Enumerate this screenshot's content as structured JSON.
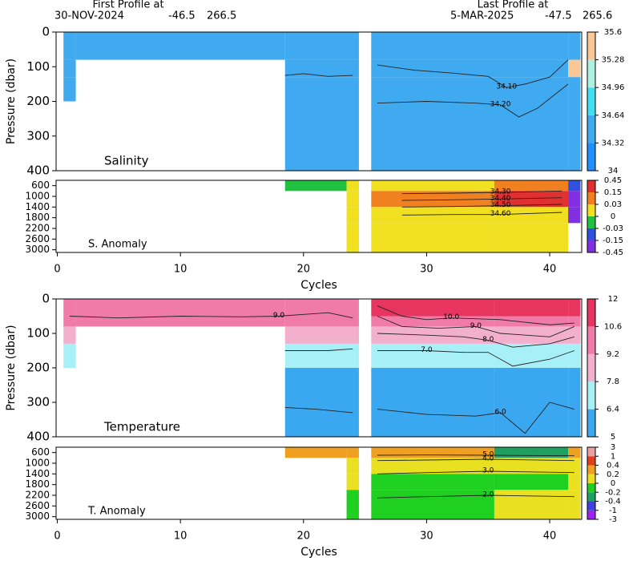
{
  "header": {
    "first_label": "First Profile at",
    "first_date": "30-NOV-2024",
    "first_lat": -46.5,
    "first_lon": 266.5,
    "last_label": "Last Profile at",
    "last_date": "5-MAR-2025",
    "last_lat": -47.5,
    "last_lon": 265.6
  },
  "chart_data": [
    {
      "type": "heatmap",
      "title": "Salinity",
      "y_label": "Pressure (dbar)",
      "xlim": [
        -0.1,
        42.6
      ],
      "ylim": [
        0,
        400
      ],
      "yreverse": true,
      "yticks": [
        0,
        100,
        200,
        300,
        400
      ],
      "x": [
        0.5,
        1.5,
        18.5,
        24.5,
        25.5,
        41.5,
        42.5
      ],
      "y": [
        0,
        80,
        130,
        200,
        400
      ],
      "z": [
        [
          34.45,
          34.45,
          34.45,
          null,
          34.45,
          34.5
        ],
        [
          34.45,
          null,
          34.45,
          null,
          34.45,
          35.4
        ],
        [
          34.45,
          null,
          34.5,
          null,
          34.5,
          34.5
        ],
        [
          null,
          null,
          34.55,
          null,
          34.55,
          34.55
        ]
      ],
      "colorbar": {
        "levels": [
          34,
          34.32,
          34.64,
          34.96,
          35.28,
          35.6
        ],
        "colors": [
          "#1e90ff",
          "#40aaf0",
          "#40e0f0",
          "#b0f0e0",
          "#f8c898"
        ]
      },
      "contours": [
        {
          "label": "34.10",
          "x": [
            26,
            29,
            32,
            35,
            36.5,
            38,
            40,
            41.5
          ],
          "y": [
            95,
            110,
            118,
            128,
            160,
            150,
            130,
            80
          ]
        },
        {
          "x": [
            18.5,
            20,
            22,
            24
          ],
          "y": [
            125,
            120,
            128,
            125
          ]
        },
        {
          "label": "34.20",
          "x": [
            26,
            30,
            34,
            36,
            37.5,
            39,
            41.5
          ],
          "y": [
            205,
            200,
            205,
            210,
            245,
            220,
            150
          ]
        }
      ]
    },
    {
      "type": "heatmap",
      "title": "S. Anomaly",
      "x_label": "Cycles",
      "xlim": [
        -0.1,
        42.6
      ],
      "xticks": [
        0,
        10,
        20,
        30,
        40
      ],
      "ylim": [
        400,
        3100
      ],
      "yreverse": true,
      "yticks": [
        600,
        1000,
        1400,
        1800,
        2200,
        2600,
        3000
      ],
      "x": [
        18.5,
        23.5,
        24.5,
        25.5,
        35.5,
        41.5,
        42.5
      ],
      "y": [
        400,
        800,
        1400,
        2000,
        3100
      ],
      "z": [
        [
          -0.01,
          0.01,
          null,
          0.02,
          0.1,
          -0.1
        ],
        [
          null,
          0.01,
          null,
          0.05,
          0.2,
          -0.3
        ],
        [
          null,
          0.01,
          null,
          0.01,
          0.02,
          -0.3
        ],
        [
          null,
          0.01,
          null,
          0.01,
          0.01,
          null
        ]
      ],
      "colorbar": {
        "levels": [
          -0.45,
          -0.15,
          -0.03,
          0,
          0.03,
          0.15,
          0.45
        ],
        "colors": [
          "#8030e0",
          "#3050e0",
          "#20c040",
          "#f0e020",
          "#f08020",
          "#e03030"
        ]
      },
      "contours": [
        {
          "label": "34.30",
          "x": [
            28,
            32,
            36,
            41
          ],
          "y": [
            900,
            880,
            850,
            800
          ]
        },
        {
          "label": "34.40",
          "x": [
            28,
            32,
            36,
            41
          ],
          "y": [
            1150,
            1130,
            1100,
            1050
          ]
        },
        {
          "label": "34.50",
          "x": [
            28,
            32,
            36,
            41
          ],
          "y": [
            1400,
            1380,
            1350,
            1300
          ]
        },
        {
          "label": "34.60",
          "x": [
            28,
            32,
            36,
            41
          ],
          "y": [
            1700,
            1680,
            1680,
            1600
          ]
        }
      ]
    },
    {
      "type": "heatmap",
      "title": "Temperature",
      "y_label": "Pressure (dbar)",
      "xlim": [
        -0.1,
        42.6
      ],
      "ylim": [
        0,
        400
      ],
      "yreverse": true,
      "yticks": [
        0,
        100,
        200,
        300,
        400
      ],
      "x": [
        0.5,
        1.5,
        18.5,
        24.5,
        25.5,
        35.5,
        41.5,
        42.5
      ],
      "y": [
        0,
        50,
        80,
        130,
        200,
        400
      ],
      "z": [
        [
          10,
          10,
          10,
          null,
          11,
          11.5,
          11
        ],
        [
          10,
          10,
          10,
          null,
          10,
          10,
          10
        ],
        [
          8.5,
          null,
          9,
          null,
          9,
          9,
          9
        ],
        [
          7,
          null,
          7,
          null,
          7,
          7,
          7
        ],
        [
          null,
          null,
          6,
          null,
          6,
          6,
          6
        ]
      ],
      "colorbar": {
        "levels": [
          5,
          6.4,
          7.8,
          9.2,
          10.6,
          12
        ],
        "colors": [
          "#3aa8f0",
          "#a8f0f8",
          "#f2b0cc",
          "#f07aa8",
          "#e83560"
        ]
      },
      "contours": [
        {
          "label": "9.0",
          "x": [
            1,
            5,
            10,
            15,
            18,
            20,
            22,
            24
          ],
          "y": [
            50,
            55,
            50,
            52,
            50,
            45,
            40,
            55
          ]
        },
        {
          "label": "10.0",
          "x": [
            26,
            28,
            30,
            32,
            36,
            40,
            42
          ],
          "y": [
            20,
            50,
            60,
            55,
            60,
            75,
            70
          ]
        },
        {
          "label": "9.0",
          "x": [
            26,
            28,
            31,
            34,
            36,
            40,
            42
          ],
          "y": [
            50,
            80,
            85,
            80,
            100,
            110,
            80
          ]
        },
        {
          "label": "8.0",
          "x": [
            26,
            30,
            33,
            35,
            37,
            40,
            42
          ],
          "y": [
            100,
            105,
            110,
            120,
            140,
            130,
            110
          ]
        },
        {
          "label": "7.0",
          "x": [
            18.5,
            22,
            24,
            25,
            26,
            30,
            33,
            35,
            37,
            40,
            42
          ],
          "y": [
            150,
            150,
            145,
            null,
            150,
            150,
            155,
            155,
            195,
            175,
            150
          ]
        },
        {
          "x": [
            18.5,
            21,
            24
          ],
          "y": [
            315,
            320,
            330
          ]
        },
        {
          "label": "6.0",
          "x": [
            26,
            30,
            34,
            36,
            38,
            40,
            42
          ],
          "y": [
            320,
            335,
            340,
            330,
            390,
            300,
            320
          ]
        }
      ]
    },
    {
      "type": "heatmap",
      "title": "T. Anomaly",
      "x_label": "Cycles",
      "xlim": [
        -0.1,
        42.6
      ],
      "xticks": [
        0,
        10,
        20,
        30,
        40
      ],
      "ylim": [
        400,
        3100
      ],
      "yreverse": true,
      "yticks": [
        600,
        1000,
        1400,
        1800,
        2200,
        2600,
        3000
      ],
      "x": [
        18.5,
        23.5,
        24.5,
        25.5,
        35.5,
        41.5,
        42.5
      ],
      "y": [
        400,
        800,
        1400,
        2000,
        3100
      ],
      "z": [
        [
          0.3,
          0.3,
          null,
          0.3,
          -0.3,
          0.3
        ],
        [
          null,
          0.1,
          null,
          0.1,
          0.1,
          0.1
        ],
        [
          null,
          0.1,
          null,
          -0.1,
          -0.1,
          0.1
        ],
        [
          null,
          -0.1,
          null,
          -0.1,
          0.1,
          0.1
        ]
      ],
      "colorbar": {
        "levels": [
          -3,
          -1,
          -0.4,
          -0.2,
          0,
          0.2,
          0.4,
          1,
          3
        ],
        "colors": [
          "#a020f0",
          "#4040e0",
          "#20a060",
          "#20d020",
          "#e8e020",
          "#f0a020",
          "#e04020",
          "#e8a0a0"
        ]
      },
      "contours": [
        {
          "label": "5.0",
          "x": [
            26,
            30,
            35,
            42
          ],
          "y": [
            700,
            690,
            700,
            720
          ]
        },
        {
          "label": "4.0",
          "x": [
            26,
            30,
            35,
            42
          ],
          "y": [
            900,
            880,
            850,
            900
          ]
        },
        {
          "label": "3.0",
          "x": [
            26,
            30,
            35,
            42
          ],
          "y": [
            1400,
            1350,
            1300,
            1350
          ]
        },
        {
          "label": "2.0",
          "x": [
            26,
            30,
            35,
            42
          ],
          "y": [
            2300,
            2250,
            2200,
            2250
          ]
        }
      ]
    }
  ]
}
